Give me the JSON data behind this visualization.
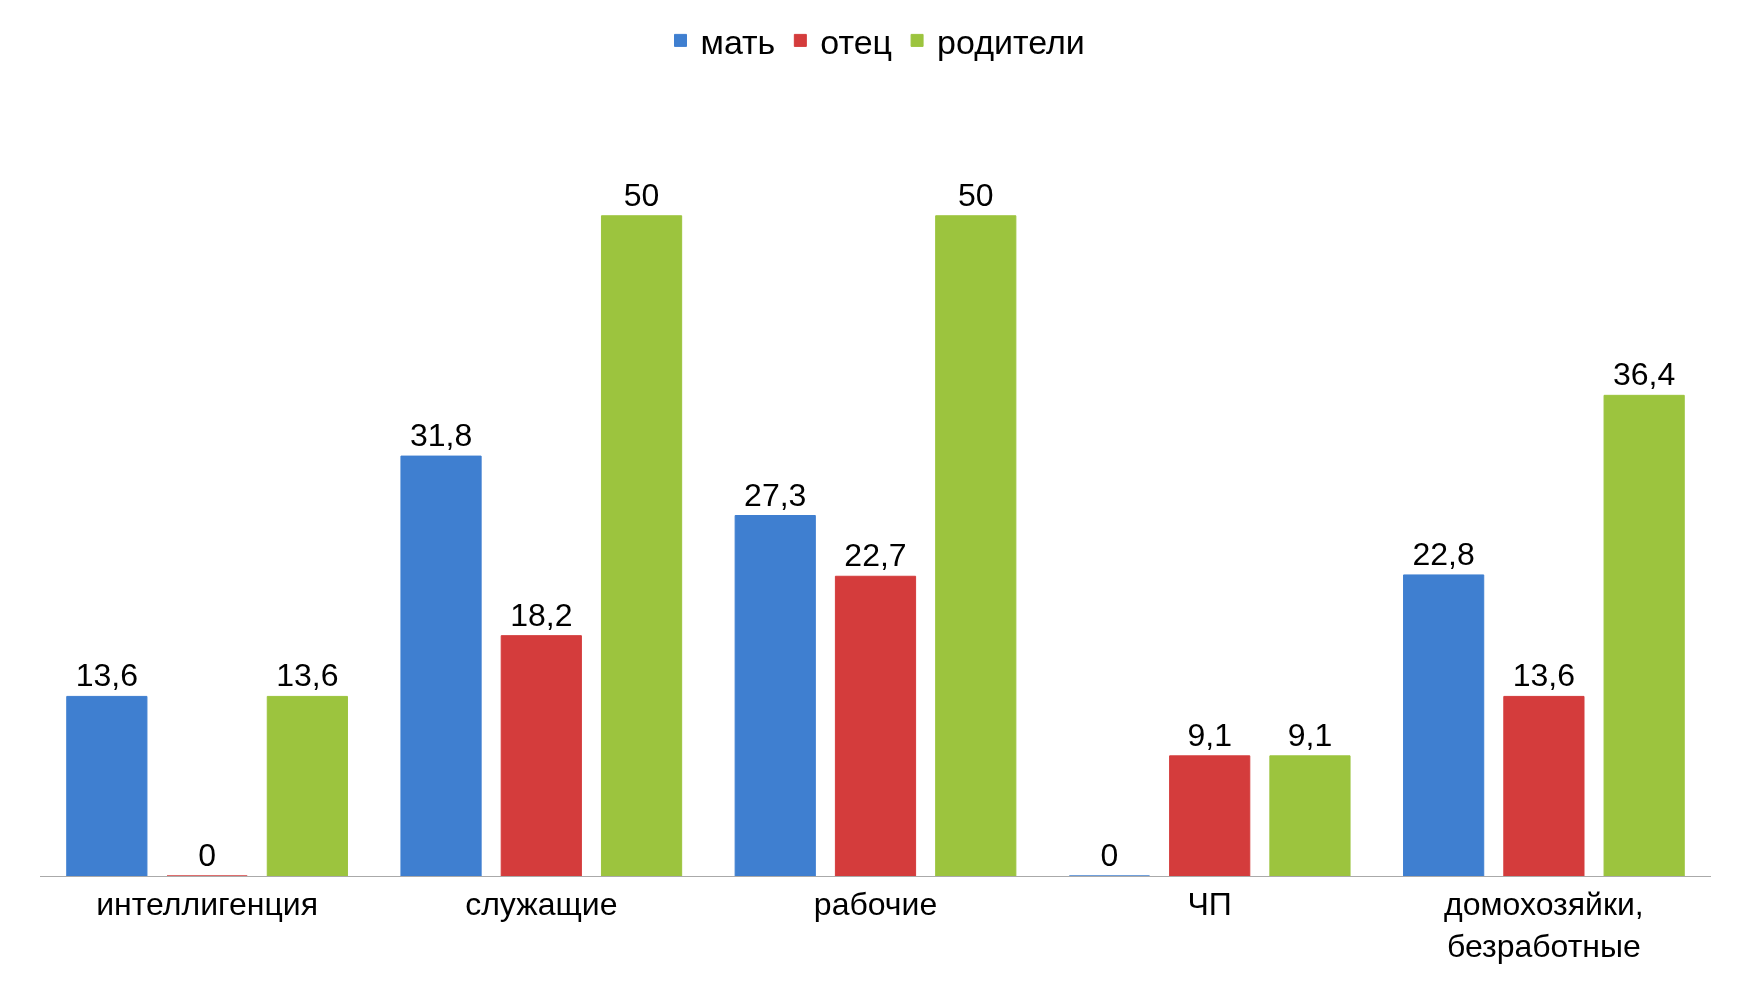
{
  "chart_data": {
    "type": "bar",
    "categories": [
      "интеллигенция",
      "служащие",
      "рабочие",
      "ЧП",
      "домохозяйки, безработные"
    ],
    "series": [
      {
        "name": "мать",
        "color": "#3f7fd0",
        "values": [
          13.6,
          31.8,
          27.3,
          0,
          22.8
        ],
        "value_labels": [
          "13,6",
          "31,8",
          "27,3",
          "0",
          "22,8"
        ]
      },
      {
        "name": "отец",
        "color": "#d43c3c",
        "values": [
          0,
          18.2,
          22.7,
          9.1,
          13.6
        ],
        "value_labels": [
          "0",
          "18,2",
          "22,7",
          "9,1",
          "13,6"
        ]
      },
      {
        "name": "родители",
        "color": "#9cc43e",
        "values": [
          13.6,
          50,
          50,
          9.1,
          36.4
        ],
        "value_labels": [
          "13,6",
          "50",
          "50",
          "9,1",
          "36,4"
        ]
      }
    ],
    "legend": "top",
    "tick_labels": "x"
  }
}
